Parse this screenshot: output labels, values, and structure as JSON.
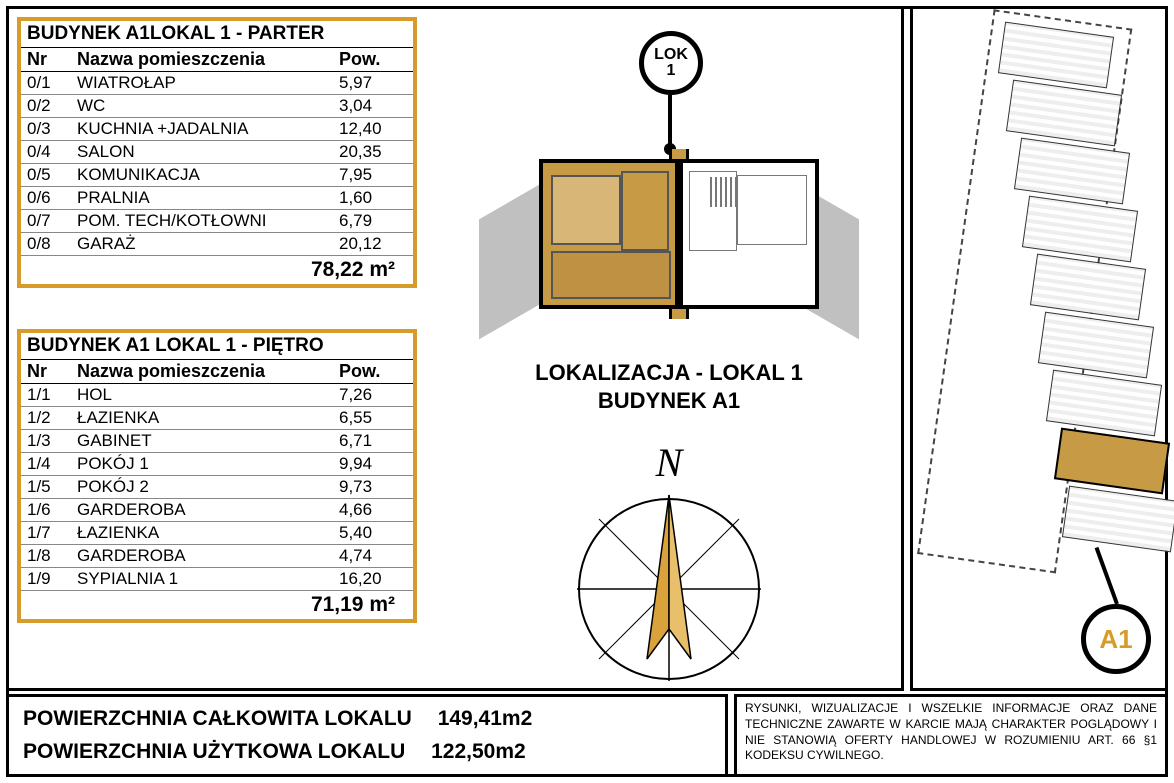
{
  "colors": {
    "accent": "#d79b2a",
    "fill_selected": "#c79a46",
    "fill_light": "#d8b678",
    "grey_shadow": "#c0c0c0",
    "border": "#000000",
    "background": "#ffffff"
  },
  "typography": {
    "family": "Arial",
    "title_size_pt": 19,
    "header_size_pt": 18,
    "row_size_pt": 17,
    "total_size_pt": 21,
    "legal_size_pt": 12
  },
  "tables": {
    "parter": {
      "title": "BUDYNEK A1LOKAL 1 - PARTER",
      "columns": {
        "nr": "Nr",
        "name": "Nazwa pomieszczenia",
        "pow": "Pow."
      },
      "rows": [
        {
          "nr": "0/1",
          "name": "WIATROŁAP",
          "pow": "5,97"
        },
        {
          "nr": "0/2",
          "name": "WC",
          "pow": "3,04"
        },
        {
          "nr": "0/3",
          "name": "KUCHNIA +JADALNIA",
          "pow": "12,40"
        },
        {
          "nr": "0/4",
          "name": "SALON",
          "pow": "20,35"
        },
        {
          "nr": "0/5",
          "name": "KOMUNIKACJA",
          "pow": "7,95"
        },
        {
          "nr": "0/6",
          "name": "PRALNIA",
          "pow": "1,60"
        },
        {
          "nr": "0/7",
          "name": "POM. TECH/KOTŁOWNI",
          "pow": "6,79"
        },
        {
          "nr": "0/8",
          "name": "GARAŻ",
          "pow": "20,12"
        }
      ],
      "total": "78,22 m²"
    },
    "pietro": {
      "title": "BUDYNEK A1 LOKAL 1 - PIĘTRO",
      "columns": {
        "nr": "Nr",
        "name": "Nazwa pomieszczenia",
        "pow": "Pow."
      },
      "rows": [
        {
          "nr": "1/1",
          "name": "HOL",
          "pow": "7,26"
        },
        {
          "nr": "1/2",
          "name": "ŁAZIENKA",
          "pow": "6,55"
        },
        {
          "nr": "1/3",
          "name": "GABINET",
          "pow": "6,71"
        },
        {
          "nr": "1/4",
          "name": "POKÓJ 1",
          "pow": "9,94"
        },
        {
          "nr": "1/5",
          "name": "POKÓJ 2",
          "pow": "9,73"
        },
        {
          "nr": "1/6",
          "name": "GARDEROBA",
          "pow": "4,66"
        },
        {
          "nr": "1/7",
          "name": "ŁAZIENKA",
          "pow": "5,40"
        },
        {
          "nr": "1/8",
          "name": "GARDEROBA",
          "pow": "4,74"
        },
        {
          "nr": "1/9",
          "name": "SYPIALNIA 1",
          "pow": "16,20"
        }
      ],
      "total": "71,19 m²"
    }
  },
  "location": {
    "badge_line1": "LOK",
    "badge_line2": "1",
    "title_line1": "LOKALIZACJA - LOKAL 1",
    "title_line2": "BUDYNEK A1",
    "north_label": "N"
  },
  "compass": {
    "circle_color": "#000000",
    "circle_stroke": 2,
    "needle_color": "#d9a23a",
    "needle_rotation_deg": 0
  },
  "siteplan": {
    "building_count": 9,
    "highlight_index": 7,
    "badge": "A1",
    "strip_rotation_deg": 8
  },
  "totals": {
    "line1_label": "POWIERZCHNIA CAŁKOWITA LOKALU",
    "line1_value": "149,41m2",
    "line2_label": "POWIERZCHNIA UŻYTKOWA LOKALU",
    "line2_value": "122,50m2"
  },
  "legal": "RYSUNKI, WIZUALIZACJE I WSZELKIE INFORMACJE ORAZ DANE TECHNICZNE ZAWARTE W KARCIE MAJĄ CHARAKTER POGLĄDOWY I NIE STANOWIĄ OFERTY HANDLOWEJ W ROZUMIENIU ART. 66 §1 KODEKSU CYWILNEGO."
}
